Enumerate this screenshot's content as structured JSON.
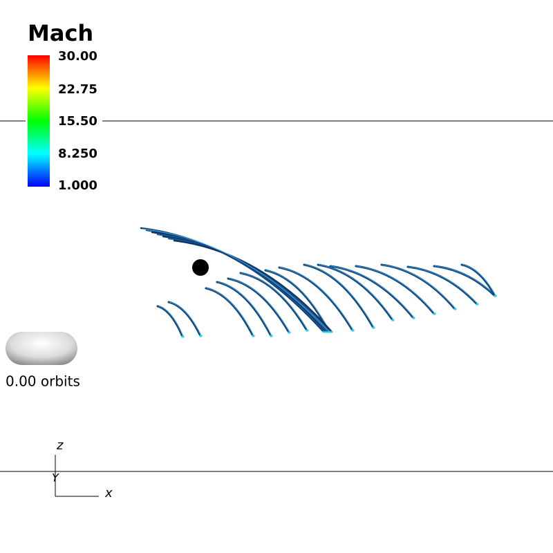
{
  "legend": {
    "title": "Mach",
    "labels": [
      "30.00",
      "22.75",
      "15.50",
      "8.250",
      "1.000"
    ]
  },
  "annotation": "0.00 orbits",
  "axes": {
    "z": "z",
    "y": "Y",
    "x": "x"
  }
}
